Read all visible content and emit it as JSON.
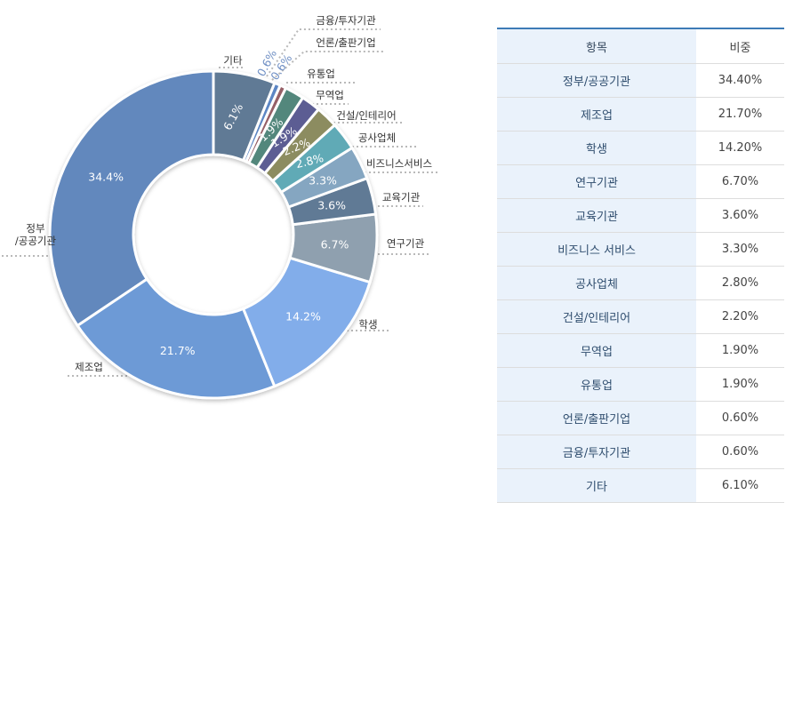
{
  "chart_data": {
    "type": "pie",
    "categories": [
      "정부/공공기관",
      "제조업",
      "학생",
      "연구기관",
      "교육기관",
      "비즈니스서비스",
      "공사업체",
      "건설/인테리어",
      "무역업",
      "유통업",
      "언론/출판기업",
      "금융/투자기관",
      "기타"
    ],
    "chart_labels": [
      "정부\n/공공기관",
      "제조업",
      "학생",
      "연구기관",
      "교육기관",
      "비즈니스서비스",
      "공사업체",
      "건설/인테리어",
      "무역업",
      "유통업",
      "언론/출판기업",
      "금융/투자기관",
      "기타"
    ],
    "values": [
      34.4,
      21.7,
      14.2,
      6.7,
      3.6,
      3.3,
      2.8,
      2.2,
      1.9,
      1.9,
      0.6,
      0.6,
      6.1
    ],
    "value_labels": [
      "34.4%",
      "21.7%",
      "14.2%",
      "6.7%",
      "3.6%",
      "3.3%",
      "2.8%",
      "2.2%",
      "1.9%",
      "1.9%",
      "0.6%",
      "0.6%",
      "6.1%"
    ],
    "colors": [
      "#6288bd",
      "#6d9ad6",
      "#82adea",
      "#8fa0af",
      "#607a95",
      "#85a6c1",
      "#60aab6",
      "#8c8c61",
      "#5b5d93",
      "#53877c",
      "#955f66",
      "#5c86c4",
      "#607a95"
    ],
    "start_angle_deg": 0,
    "direction": "counterclockwise-from-top"
  },
  "table": {
    "headers": [
      "항목",
      "비중"
    ],
    "rows": [
      [
        "정부/공공기관",
        "34.40%"
      ],
      [
        "제조업",
        "21.70%"
      ],
      [
        "학생",
        "14.20%"
      ],
      [
        "연구기관",
        "6.70%"
      ],
      [
        "교육기관",
        "3.60%"
      ],
      [
        "비즈니스 서비스",
        "3.30%"
      ],
      [
        "공사업체",
        "2.80%"
      ],
      [
        "건설/인테리어",
        "2.20%"
      ],
      [
        "무역업",
        "1.90%"
      ],
      [
        "유통업",
        "1.90%"
      ],
      [
        "언론/출판기업",
        "0.60%"
      ],
      [
        "금융/투자기관",
        "0.60%"
      ],
      [
        "기타",
        "6.10%"
      ]
    ]
  }
}
